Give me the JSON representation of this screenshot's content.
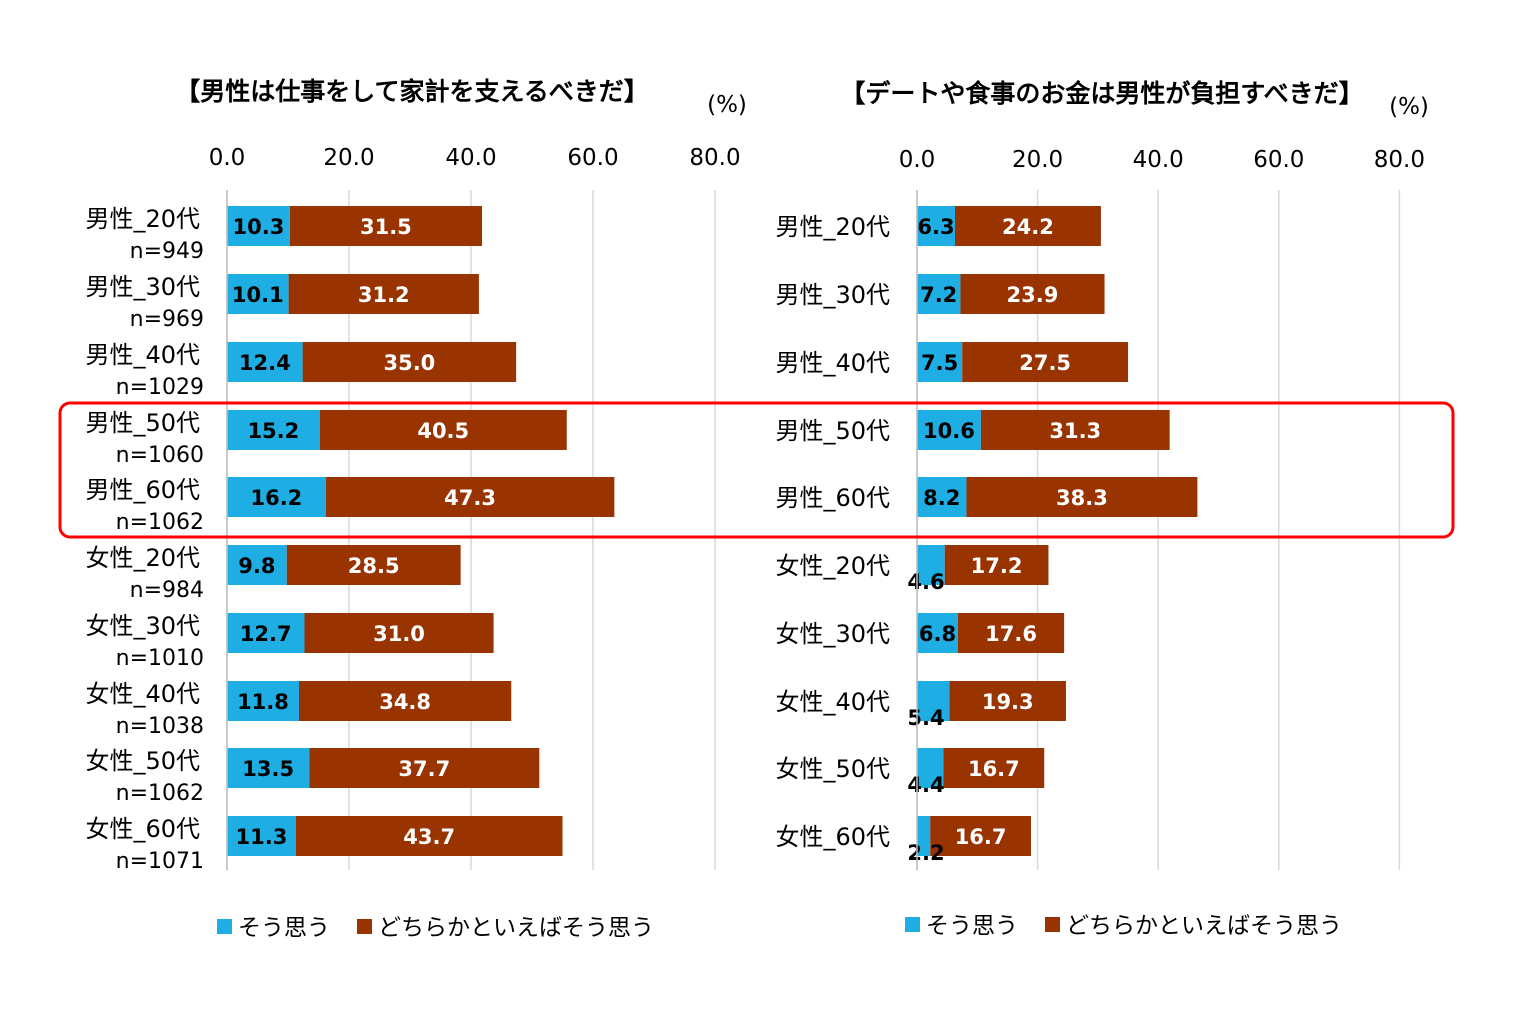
{
  "colors": {
    "so_omou": "#1EAEE4",
    "dochiraka": "#993300",
    "grid": "#d9d9d9",
    "highlight": "#FF0000"
  },
  "legend": {
    "series1": "そう思う",
    "series2": "どちらかといえばそう思う"
  },
  "chart_data": [
    {
      "type": "bar",
      "orientation": "horizontal",
      "stacked": true,
      "title": "【男性は仕事をして家計を支えるべきだ】",
      "unit": "(%)",
      "xlim": [
        0,
        80
      ],
      "x_ticks": [
        "0.0",
        "20.0",
        "40.0",
        "60.0",
        "80.0"
      ],
      "grid": true,
      "legend_position": "bottom",
      "categories": [
        "男性_20代",
        "男性_30代",
        "男性_40代",
        "男性_50代",
        "男性_60代",
        "女性_20代",
        "女性_30代",
        "女性_40代",
        "女性_50代",
        "女性_60代"
      ],
      "sample_sizes": [
        "n=949",
        "n=969",
        "n=1029",
        "n=1060",
        "n=1062",
        "n=984",
        "n=1010",
        "n=1038",
        "n=1062",
        "n=1071"
      ],
      "series": [
        {
          "name": "そう思う",
          "values": [
            10.3,
            10.1,
            12.4,
            15.2,
            16.2,
            9.8,
            12.7,
            11.8,
            13.5,
            11.3
          ]
        },
        {
          "name": "どちらかといえばそう思う",
          "values": [
            31.5,
            31.2,
            35.0,
            40.5,
            47.3,
            28.5,
            31.0,
            34.8,
            37.7,
            43.7
          ]
        }
      ],
      "highlighted_categories": [
        "男性_50代",
        "男性_60代"
      ]
    },
    {
      "type": "bar",
      "orientation": "horizontal",
      "stacked": true,
      "title": "【デートや食事のお金は男性が負担すべきだ】",
      "unit": "(%)",
      "xlim": [
        0,
        80
      ],
      "x_ticks": [
        "0.0",
        "20.0",
        "40.0",
        "60.0",
        "80.0"
      ],
      "grid": true,
      "legend_position": "bottom",
      "categories": [
        "男性_20代",
        "男性_30代",
        "男性_40代",
        "男性_50代",
        "男性_60代",
        "女性_20代",
        "女性_30代",
        "女性_40代",
        "女性_50代",
        "女性_60代"
      ],
      "series": [
        {
          "name": "そう思う",
          "values": [
            6.3,
            7.2,
            7.5,
            10.6,
            8.2,
            4.6,
            6.8,
            5.4,
            4.4,
            2.2
          ]
        },
        {
          "name": "どちらかといえばそう思う",
          "values": [
            24.2,
            23.9,
            27.5,
            31.3,
            38.3,
            17.2,
            17.6,
            19.3,
            16.7,
            16.7
          ]
        }
      ],
      "highlighted_categories": [
        "男性_50代",
        "男性_60代"
      ]
    }
  ]
}
